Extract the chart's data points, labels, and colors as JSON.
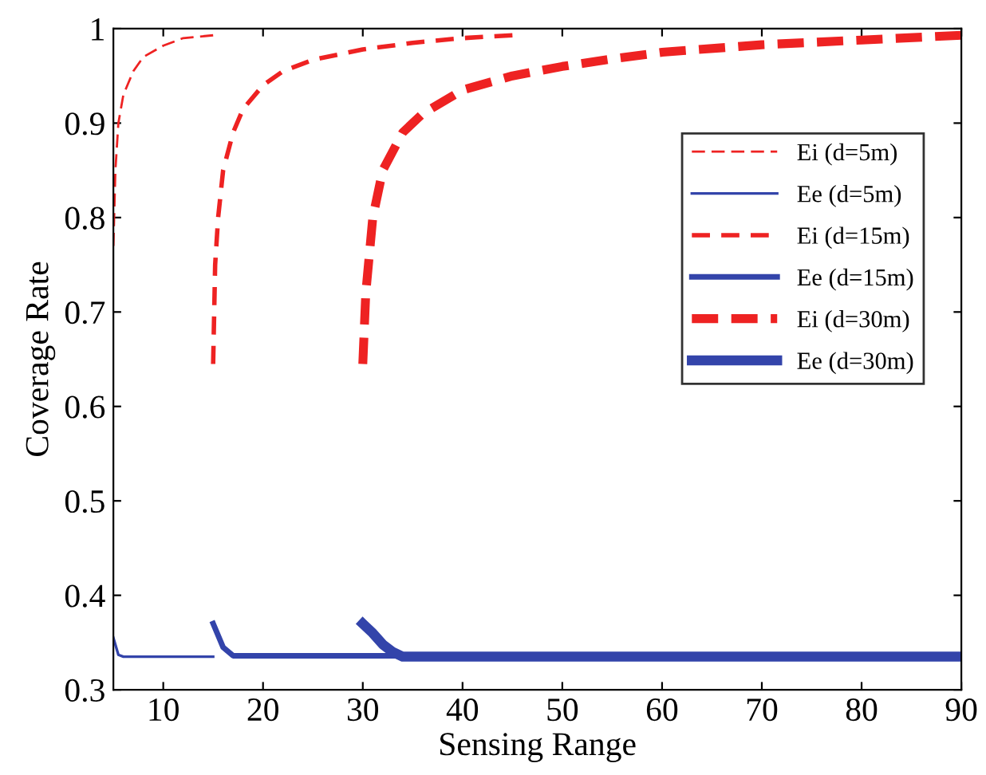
{
  "chart_data": {
    "type": "line",
    "xlabel": "Sensing Range",
    "ylabel": "Coverage Rate",
    "xlim": [
      5,
      90
    ],
    "xticks": [
      10,
      20,
      30,
      40,
      50,
      60,
      70,
      80,
      90
    ],
    "ylim": [
      0.3,
      1
    ],
    "yticks": [
      0.3,
      0.4,
      0.5,
      0.6,
      0.7,
      0.8,
      0.9,
      1
    ],
    "grid": false,
    "legend": "top right",
    "marker": "none",
    "series": [
      {
        "name": "Ei (d=5m)",
        "color": "#ee2222",
        "line_style": "dashed",
        "x": [
          5,
          5.2,
          5.5,
          6,
          7,
          8,
          10,
          12,
          15
        ],
        "values": [
          0.77,
          0.85,
          0.9,
          0.93,
          0.955,
          0.97,
          0.982,
          0.99,
          0.993
        ]
      },
      {
        "name": "Ee (d=5m)",
        "color": "#3344aa",
        "line_style": "solid",
        "x": [
          5,
          5.5,
          6,
          15
        ],
        "values": [
          0.355,
          0.337,
          0.335,
          0.335
        ]
      },
      {
        "name": "Ei (d=15m)",
        "color": "#ee2222",
        "line_style": "dashed",
        "x": [
          15,
          15.2,
          15.5,
          16,
          17,
          18,
          20,
          22,
          25,
          30,
          35,
          40,
          45
        ],
        "values": [
          0.645,
          0.75,
          0.8,
          0.85,
          0.89,
          0.915,
          0.94,
          0.955,
          0.967,
          0.978,
          0.985,
          0.99,
          0.993
        ]
      },
      {
        "name": "Ee (d=15m)",
        "color": "#3344aa",
        "line_style": "solid",
        "x": [
          15,
          16,
          17,
          18,
          45
        ],
        "values": [
          0.37,
          0.345,
          0.336,
          0.336,
          0.336
        ]
      },
      {
        "name": "Ei (d=30m)",
        "color": "#ee2222",
        "line_style": "dashed",
        "x": [
          30,
          30.3,
          31,
          32,
          34,
          36,
          40,
          45,
          50,
          55,
          60,
          70,
          80,
          90
        ],
        "values": [
          0.645,
          0.72,
          0.8,
          0.85,
          0.89,
          0.91,
          0.935,
          0.95,
          0.96,
          0.968,
          0.975,
          0.983,
          0.988,
          0.993
        ]
      },
      {
        "name": "Ee (d=30m)",
        "color": "#3344aa",
        "line_style": "solid",
        "x": [
          30,
          31,
          32,
          33,
          34,
          90
        ],
        "values": [
          0.37,
          0.36,
          0.348,
          0.34,
          0.335,
          0.335
        ]
      }
    ]
  }
}
